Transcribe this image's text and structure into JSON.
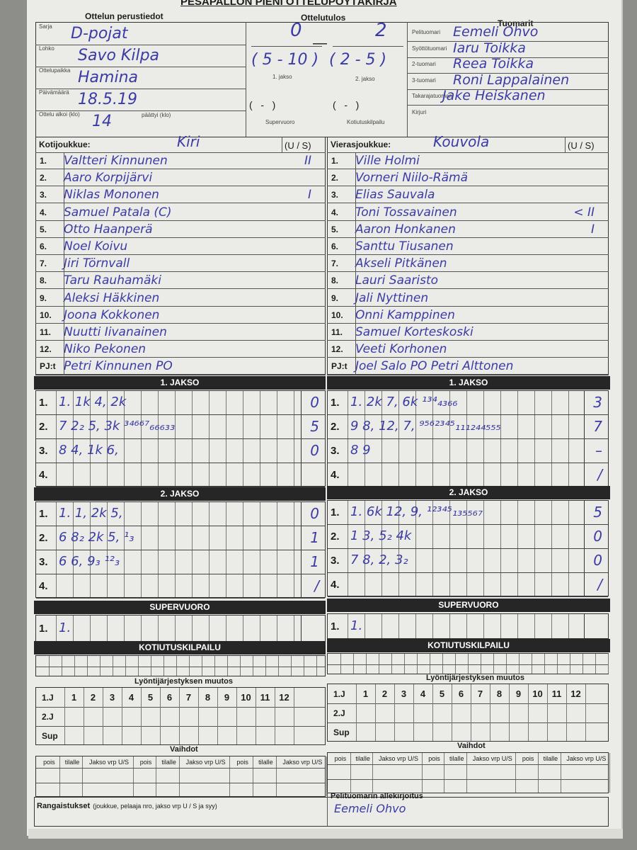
{
  "title": "PESÄPALLON PIENI OTTELUPÖYTÄKIRJA",
  "basic": {
    "heading": "Ottelun perustiedot",
    "fields": [
      {
        "label": "Sarja",
        "value": "D-pojat"
      },
      {
        "label": "Lohko",
        "value": "Savo Kilpa"
      },
      {
        "label": "Ottelupaikka",
        "value": "Hamina"
      },
      {
        "label": "Päivämäärä",
        "value": "18.5.19"
      },
      {
        "label": "Ottelu alkoi (klo)",
        "value": "14"
      }
    ],
    "ended_label": "päättyi (klo)"
  },
  "result": {
    "heading": "Ottelutulos",
    "home": "0",
    "away": "2",
    "p1": "( 5 - 10 )",
    "p1_label": "1. jakso",
    "p2": "( 2 - 5 )",
    "p2_label": "2. jakso",
    "sv": "(   -   )",
    "sv_label": "Supervuoro",
    "kk": "(   -   )",
    "kk_label": "Kotiutuskilpailu"
  },
  "referees": {
    "heading": "Tuomarit",
    "rows": [
      {
        "label": "Pelituomari",
        "value": "Eemeli Ohvo"
      },
      {
        "label": "Syöttötuomari",
        "value": "Iaru Toikka"
      },
      {
        "label": "2-tuomari",
        "value": "Reea Toikka"
      },
      {
        "label": "3-tuomari",
        "value": "Roni Lappalainen"
      },
      {
        "label": "Takarajatuomari",
        "value": "Jake Heiskanen"
      },
      {
        "label": "Kirjuri",
        "value": ""
      }
    ]
  },
  "home": {
    "label": "Kotijoukkue:",
    "team": "Kiri",
    "us_label": "(U / S)",
    "players": [
      {
        "n": "1.",
        "name": "Valtteri Kinnunen",
        "us": "II"
      },
      {
        "n": "2.",
        "name": "Aaro Korpijärvi",
        "us": ""
      },
      {
        "n": "3.",
        "name": "Niklas Mononen",
        "us": "I"
      },
      {
        "n": "4.",
        "name": "Samuel Patala (C)",
        "us": ""
      },
      {
        "n": "5.",
        "name": "Otto Haanperä",
        "us": ""
      },
      {
        "n": "6.",
        "name": "Noel Koivu",
        "us": ""
      },
      {
        "n": "7.",
        "name": "Jiri Törnvall",
        "us": ""
      },
      {
        "n": "8.",
        "name": "Taru Rauhamäki",
        "us": ""
      },
      {
        "n": "9.",
        "name": "Aleksi Häkkinen",
        "us": ""
      },
      {
        "n": "10.",
        "name": "Joona Kokkonen",
        "us": ""
      },
      {
        "n": "11.",
        "name": "Nuutti Iivanainen",
        "us": ""
      },
      {
        "n": "12.",
        "name": "Niko Pekonen",
        "us": ""
      },
      {
        "n": "PJ:t",
        "name": "Petri Kinnunen PO",
        "us": ""
      }
    ],
    "j1": [
      {
        "l": "1.",
        "t": "1.  1k  4,  2k",
        "s": "0"
      },
      {
        "l": "2.",
        "t": "7  2₂ 5, 3k ³⁴⁶⁶⁷₆₆₆₃₃",
        "s": "5"
      },
      {
        "l": "3.",
        "t": "8  4,  1k 6,",
        "s": "0"
      },
      {
        "l": "4.",
        "t": "",
        "s": ""
      }
    ],
    "j2": [
      {
        "l": "1.",
        "t": "1.  1, 2k 5,",
        "s": "0"
      },
      {
        "l": "2.",
        "t": "6  8₂ 2k 5, ¹₃",
        "s": "1"
      },
      {
        "l": "3.",
        "t": "6  6, 9₃  ¹²₃",
        "s": "1"
      },
      {
        "l": "4.",
        "t": "",
        "s": "/"
      }
    ],
    "sup": [
      {
        "l": "1.",
        "t": "1.",
        "s": ""
      }
    ]
  },
  "away": {
    "label": "Vierasjoukkue:",
    "team": "Kouvola",
    "us_label": "(U / S)",
    "players": [
      {
        "n": "1.",
        "name": "Ville Holmi",
        "us": ""
      },
      {
        "n": "2.",
        "name": "Vorneri Niilo-Rämä",
        "us": ""
      },
      {
        "n": "3.",
        "name": "Elias Sauvala",
        "us": ""
      },
      {
        "n": "4.",
        "name": "Toni Tossavainen",
        "us": "< II"
      },
      {
        "n": "5.",
        "name": "Aaron Honkanen",
        "us": "I"
      },
      {
        "n": "6.",
        "name": "Santtu Tiusanen",
        "us": ""
      },
      {
        "n": "7.",
        "name": "Akseli Pitkänen",
        "us": ""
      },
      {
        "n": "8.",
        "name": "Lauri Saaristo",
        "us": ""
      },
      {
        "n": "9.",
        "name": "Jali Nyttinen",
        "us": ""
      },
      {
        "n": "10.",
        "name": "Onni Kamppinen",
        "us": ""
      },
      {
        "n": "11.",
        "name": "Samuel Korteskoski",
        "us": ""
      },
      {
        "n": "12.",
        "name": "Veeti Korhonen",
        "us": ""
      },
      {
        "n": "PJ:t",
        "name": "Joel Salo PO   Petri Alttonen",
        "us": ""
      }
    ],
    "j1": [
      {
        "l": "1.",
        "t": "1.  2k 7, 6k ¹³⁴₄₃₆₆",
        "s": "3"
      },
      {
        "l": "2.",
        "t": "9  8, 12, 7, ⁹⁵⁶²³⁴⁵₁₁₁₂₄₄₅₅₅",
        "s": "7"
      },
      {
        "l": "3.",
        "t": "8  9",
        "s": "–"
      },
      {
        "l": "4.",
        "t": "",
        "s": "/"
      }
    ],
    "j2": [
      {
        "l": "1.",
        "t": "1.  6k 12, 9, ¹²³⁴⁵₁₃₅₅₆₇",
        "s": "5"
      },
      {
        "l": "2.",
        "t": "1   3, 5₂ 4k",
        "s": "0"
      },
      {
        "l": "3.",
        "t": "7  8, 2, 3₂",
        "s": "0"
      },
      {
        "l": "4.",
        "t": "",
        "s": "/"
      }
    ],
    "sup": [
      {
        "l": "1.",
        "t": "1.",
        "s": ""
      }
    ]
  },
  "sections": {
    "j1": "1. JAKSO",
    "j2": "2. JAKSO",
    "sup": "SUPERVUORO",
    "kk": "KOTIUTUSKILPAILU",
    "order": "Lyöntijärjestyksen muutos",
    "subs": "Vaihdot"
  },
  "order_rows": [
    "1.J",
    "2.J",
    "Sup"
  ],
  "order_cols": [
    "1",
    "2",
    "3",
    "4",
    "5",
    "6",
    "7",
    "8",
    "9",
    "10",
    "11",
    "12"
  ],
  "subs_cols": [
    "pois",
    "tilalle",
    "Jakso vrp U/S",
    "pois",
    "tilalle",
    "Jakso vrp U/S",
    "pois",
    "tilalle",
    "Jakso vrp U/S"
  ],
  "penalties": {
    "label": "Rangaistukset",
    "hint": "(joukkue, pelaaja nro, jakso vrp U / S ja syy)"
  },
  "signature": {
    "label": "Pelituomarin allekirjoitus",
    "value": "Eemeli Ohvo"
  },
  "colors": {
    "ink": "#3b3ba6",
    "bar": "#262626",
    "paper": "#ebebe7"
  }
}
